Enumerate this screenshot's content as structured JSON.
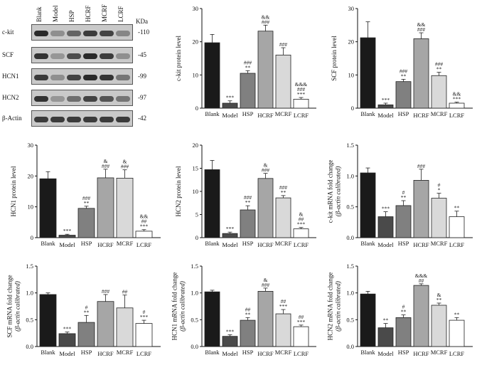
{
  "blot": {
    "lanes": [
      "Blank",
      "Model",
      "HSP",
      "HCRF",
      "MCRF",
      "LCRF"
    ],
    "unit": "KDa",
    "rows": [
      {
        "protein": "c-kit",
        "mw": "-110",
        "intensities": [
          0.95,
          0.35,
          0.6,
          0.85,
          0.8,
          0.4
        ]
      },
      {
        "protein": "SCF",
        "mw": "-45",
        "intensities": [
          0.9,
          0.3,
          0.75,
          0.95,
          0.85,
          0.35
        ]
      },
      {
        "protein": "HCN1",
        "mw": "-99",
        "intensities": [
          0.85,
          0.35,
          0.8,
          0.95,
          0.9,
          0.5
        ]
      },
      {
        "protein": "HCN2",
        "mw": "-97",
        "intensities": [
          0.9,
          0.3,
          0.55,
          0.8,
          0.7,
          0.5
        ]
      },
      {
        "protein": "β-Actin",
        "mw": "-42",
        "intensities": [
          0.85,
          0.85,
          0.85,
          0.85,
          0.85,
          0.85
        ]
      }
    ]
  },
  "chart_data": [
    {
      "type": "bar",
      "ylabel": "c-kit protein level",
      "ylim": [
        0,
        30
      ],
      "yticks": [
        "0",
        "10",
        "20",
        "30"
      ],
      "categories": [
        "Blank",
        "Model",
        "HSP",
        "HCRF",
        "MCRF",
        "LCRF"
      ],
      "values": [
        19.7,
        1.5,
        10.5,
        23.2,
        16.0,
        2.7
      ],
      "errors": [
        2.5,
        0.7,
        0.8,
        1.8,
        2.2,
        0.5
      ],
      "annotations": [
        "",
        "***",
        "###\n**",
        "&&\n###",
        "###",
        "&&&\n###\n***"
      ]
    },
    {
      "type": "bar",
      "ylabel": "SCF protein level",
      "ylim": [
        0,
        30
      ],
      "yticks": [
        "0",
        "10",
        "20",
        "30"
      ],
      "categories": [
        "Blank",
        "Model",
        "HSP",
        "HCRF",
        "MCRF",
        "LCRF"
      ],
      "values": [
        21.2,
        1.0,
        8.0,
        20.9,
        9.8,
        1.5
      ],
      "errors": [
        4.8,
        0.5,
        0.7,
        1.8,
        1.0,
        0.3
      ],
      "annotations": [
        "",
        "***",
        "###\n**",
        "&&\n###",
        "###\n**",
        "&&\n***"
      ]
    },
    {
      "type": "bar",
      "ylabel": "HCN1 protein level",
      "ylim": [
        0,
        30
      ],
      "yticks": [
        "0",
        "10",
        "20",
        "30"
      ],
      "categories": [
        "Blank",
        "Model",
        "HSP",
        "HCRF",
        "MCRF",
        "LCRF"
      ],
      "values": [
        19.1,
        0.8,
        9.5,
        19.4,
        19.3,
        2.1
      ],
      "errors": [
        2.3,
        0.3,
        0.7,
        2.8,
        2.7,
        0.5
      ],
      "annotations": [
        "",
        "***",
        "###\n**",
        "&\n###",
        "&\n###",
        "&&\n##\n***"
      ]
    },
    {
      "type": "bar",
      "ylabel": "HCN2 protein level",
      "ylim": [
        0,
        20
      ],
      "yticks": [
        "0",
        "5",
        "10",
        "15",
        "20"
      ],
      "categories": [
        "Blank",
        "Model",
        "HSP",
        "HCRF",
        "MCRF",
        "LCRF"
      ],
      "values": [
        14.7,
        0.9,
        6.0,
        12.8,
        8.6,
        1.9
      ],
      "errors": [
        2.0,
        0.3,
        0.9,
        1.1,
        0.5,
        0.3
      ],
      "annotations": [
        "",
        "***",
        "###\n**",
        "&\n###",
        "###\n**",
        "&\n##\n***"
      ]
    },
    {
      "type": "bar",
      "ylabel": "c-kit mRNA fold change\n(β-actin calibrated)",
      "ylim": [
        0,
        1.5
      ],
      "yticks": [
        "0.0",
        "0.5",
        "1.0",
        "1.5"
      ],
      "categories": [
        "Blank",
        "Model",
        "HSP",
        "HCRF",
        "MCRF",
        "LCRF"
      ],
      "values": [
        1.05,
        0.34,
        0.52,
        0.93,
        0.64,
        0.34
      ],
      "errors": [
        0.08,
        0.08,
        0.08,
        0.18,
        0.08,
        0.09
      ],
      "annotations": [
        "",
        "***",
        "#\n**",
        "###",
        "#\n*",
        "**"
      ]
    },
    {
      "type": "bar",
      "ylabel": "SCF mRNA fold change\n(β-actin calibrated)",
      "ylim": [
        0,
        1.5
      ],
      "yticks": [
        "0.0",
        "0.5",
        "1.0",
        "1.5"
      ],
      "categories": [
        "Blank",
        "Model",
        "HSP",
        "HCRF",
        "MCRF",
        "LCRF"
      ],
      "values": [
        0.97,
        0.24,
        0.45,
        0.84,
        0.72,
        0.43
      ],
      "errors": [
        0.03,
        0.03,
        0.13,
        0.13,
        0.24,
        0.06
      ],
      "annotations": [
        "",
        "***",
        "#\n**",
        "###",
        "##",
        "#\n***"
      ]
    },
    {
      "type": "bar",
      "ylabel": "HCN1 mRNA fold change\n(β-actin calibrated)",
      "ylim": [
        0,
        1.5
      ],
      "yticks": [
        "0.0",
        "0.5",
        "1.0",
        "1.5"
      ],
      "categories": [
        "Blank",
        "Model",
        "HSP",
        "HCRF",
        "MCRF",
        "LCRF"
      ],
      "values": [
        1.02,
        0.19,
        0.49,
        1.03,
        0.61,
        0.37
      ],
      "errors": [
        0.03,
        0.03,
        0.05,
        0.06,
        0.08,
        0.03
      ],
      "annotations": [
        "",
        "***",
        "##\n**",
        "&\n###",
        "##\n***",
        "##\n***"
      ]
    },
    {
      "type": "bar",
      "ylabel": "HCN2 mRNA fold change\n(β-actin calibrated)",
      "ylim": [
        0,
        1.5
      ],
      "yticks": [
        "0.0",
        "0.5",
        "1.0",
        "1.5"
      ],
      "categories": [
        "Blank",
        "Model",
        "HSP",
        "HCRF",
        "MCRF",
        "LCRF"
      ],
      "values": [
        0.98,
        0.35,
        0.54,
        1.14,
        0.77,
        0.49
      ],
      "errors": [
        0.05,
        0.08,
        0.05,
        0.03,
        0.04,
        0.05
      ],
      "annotations": [
        "",
        "**",
        "#\n**",
        "&&&\n##",
        "&\n**",
        "**"
      ]
    }
  ],
  "colors": {
    "bars": [
      "#1a1a1a",
      "#4a4a4a",
      "#808080",
      "#a6a6a6",
      "#d9d9d9",
      "#ffffff"
    ],
    "axis": "#111111"
  }
}
